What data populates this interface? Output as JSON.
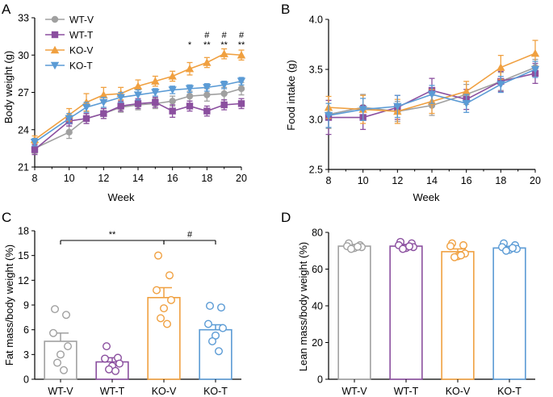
{
  "colors": {
    "WT-V": "#a0a0a0",
    "WT-T": "#8b4f9f",
    "KO-V": "#f0a040",
    "KO-T": "#5b9bd5",
    "axis": "#000000"
  },
  "chart_data": [
    {
      "panel": "A",
      "type": "line",
      "xlabel": "Week",
      "ylabel": "Body weight (g)",
      "xlim": [
        8,
        20
      ],
      "ylim": [
        21,
        33
      ],
      "xticks": [
        "8",
        "10",
        "12",
        "14",
        "16",
        "18",
        "20"
      ],
      "yticks": [
        "21",
        "24",
        "27",
        "30",
        "33"
      ],
      "legend": [
        "WT-V",
        "WT-T",
        "KO-V",
        "KO-T"
      ],
      "x": [
        8,
        10,
        11,
        12,
        13,
        14,
        15,
        16,
        17,
        18,
        19,
        20
      ],
      "series": [
        {
          "name": "WT-V",
          "values": [
            22.5,
            23.8,
            24.9,
            25.3,
            25.8,
            26.0,
            26.1,
            26.3,
            26.7,
            26.8,
            26.9,
            27.3
          ],
          "err": [
            0.4,
            0.5,
            0.4,
            0.4,
            0.4,
            0.4,
            0.4,
            0.4,
            0.4,
            0.5,
            0.5,
            0.5
          ]
        },
        {
          "name": "WT-T",
          "values": [
            22.4,
            24.7,
            24.9,
            25.3,
            25.9,
            26.1,
            26.2,
            25.5,
            25.9,
            25.5,
            26.0,
            26.1
          ],
          "err": [
            0.4,
            0.4,
            0.4,
            0.4,
            0.4,
            0.4,
            0.4,
            0.5,
            0.4,
            0.4,
            0.4,
            0.4
          ]
        },
        {
          "name": "KO-V",
          "values": [
            23.2,
            25.2,
            26.2,
            26.8,
            26.9,
            27.5,
            27.9,
            28.3,
            28.9,
            29.4,
            30.1,
            30.0
          ],
          "err": [
            0.3,
            0.5,
            0.7,
            0.6,
            0.5,
            0.5,
            0.4,
            0.4,
            0.5,
            0.4,
            0.4,
            0.4
          ]
        },
        {
          "name": "KO-T",
          "values": [
            23.0,
            24.9,
            25.8,
            26.2,
            26.6,
            26.8,
            27.0,
            27.2,
            27.3,
            27.4,
            27.6,
            27.9
          ],
          "err": [
            0.3,
            0.4,
            0.4,
            0.4,
            0.4,
            0.4,
            0.3,
            0.3,
            0.3,
            0.3,
            0.3,
            0.3
          ]
        }
      ],
      "annotations": [
        {
          "x": 17,
          "lines": [
            "*"
          ]
        },
        {
          "x": 18,
          "lines": [
            "#",
            "**"
          ]
        },
        {
          "x": 19,
          "lines": [
            "#",
            "**"
          ]
        },
        {
          "x": 20,
          "lines": [
            "#",
            "**"
          ]
        }
      ]
    },
    {
      "panel": "B",
      "type": "line",
      "xlabel": "Week",
      "ylabel": "Food intake (g)",
      "xlim": [
        8,
        20
      ],
      "ylim": [
        2.5,
        4.0
      ],
      "xticks": [
        "8",
        "10",
        "12",
        "14",
        "16",
        "18",
        "20"
      ],
      "yticks": [
        "2.5",
        "3.0",
        "3.5",
        "4.0"
      ],
      "x": [
        8,
        10,
        12,
        14,
        16,
        18,
        20
      ],
      "series": [
        {
          "name": "WT-V",
          "values": [
            3.05,
            3.12,
            3.08,
            3.14,
            3.25,
            3.38,
            3.52
          ],
          "err": [
            0.14,
            0.13,
            0.1,
            0.1,
            0.1,
            0.09,
            0.08
          ]
        },
        {
          "name": "WT-T",
          "values": [
            3.02,
            3.02,
            3.12,
            3.29,
            3.2,
            3.38,
            3.46
          ],
          "err": [
            0.17,
            0.12,
            0.12,
            0.12,
            0.1,
            0.1,
            0.1
          ]
        },
        {
          "name": "KO-V",
          "values": [
            3.12,
            3.1,
            3.08,
            3.18,
            3.28,
            3.52,
            3.66
          ],
          "err": [
            0.11,
            0.14,
            0.12,
            0.12,
            0.1,
            0.12,
            0.13
          ]
        },
        {
          "name": "KO-T",
          "values": [
            3.04,
            3.1,
            3.13,
            3.25,
            3.16,
            3.35,
            3.5
          ],
          "err": [
            0.12,
            0.11,
            0.11,
            0.09,
            0.09,
            0.08,
            0.08
          ]
        }
      ]
    },
    {
      "panel": "C",
      "type": "bar",
      "ylabel": "Fat mass/body weight (%)",
      "ylim": [
        0,
        18
      ],
      "yticks": [
        "0",
        "3",
        "6",
        "9",
        "12",
        "15",
        "18"
      ],
      "categories": [
        "WT-V",
        "WT-T",
        "KO-V",
        "KO-T"
      ],
      "values": [
        4.6,
        2.1,
        9.9,
        6.0
      ],
      "err": [
        1.0,
        0.5,
        1.2,
        0.6
      ],
      "points": [
        [
          8.5,
          7.8,
          5.6,
          4.0,
          3.0,
          2.0,
          1.1
        ],
        [
          4.0,
          2.6,
          2.5,
          1.9,
          1.6,
          1.2,
          1.0
        ],
        [
          15.0,
          12.6,
          10.8,
          9.6,
          8.6,
          7.4,
          6.7
        ],
        [
          8.9,
          8.7,
          6.7,
          6.2,
          5.3,
          4.6,
          3.4
        ]
      ],
      "significance": [
        {
          "from": "WT-V",
          "to": "KO-V",
          "label": "**"
        },
        {
          "from": "KO-V",
          "to": "KO-T",
          "label": "#"
        }
      ]
    },
    {
      "panel": "D",
      "type": "bar",
      "ylabel": "Lean mass/body weight (%)",
      "ylim": [
        0,
        80
      ],
      "yticks": [
        "0",
        "20",
        "40",
        "60",
        "80"
      ],
      "categories": [
        "WT-V",
        "WT-T",
        "KO-V",
        "KO-T"
      ],
      "values": [
        72.5,
        72.5,
        69.5,
        71.5
      ],
      "err": [
        0.9,
        0.9,
        1.5,
        0.9
      ],
      "points": [
        [
          74.0,
          73.0,
          72.5,
          72.0,
          71.5,
          71.0,
          72.2
        ],
        [
          74.8,
          74.0,
          73.0,
          72.0,
          71.5,
          71.0,
          72.4
        ],
        [
          74.0,
          73.0,
          72.5,
          68.5,
          67.0,
          66.5,
          67.5
        ],
        [
          74.0,
          73.0,
          72.0,
          71.0,
          70.5,
          70.0,
          71.5
        ]
      ]
    }
  ]
}
